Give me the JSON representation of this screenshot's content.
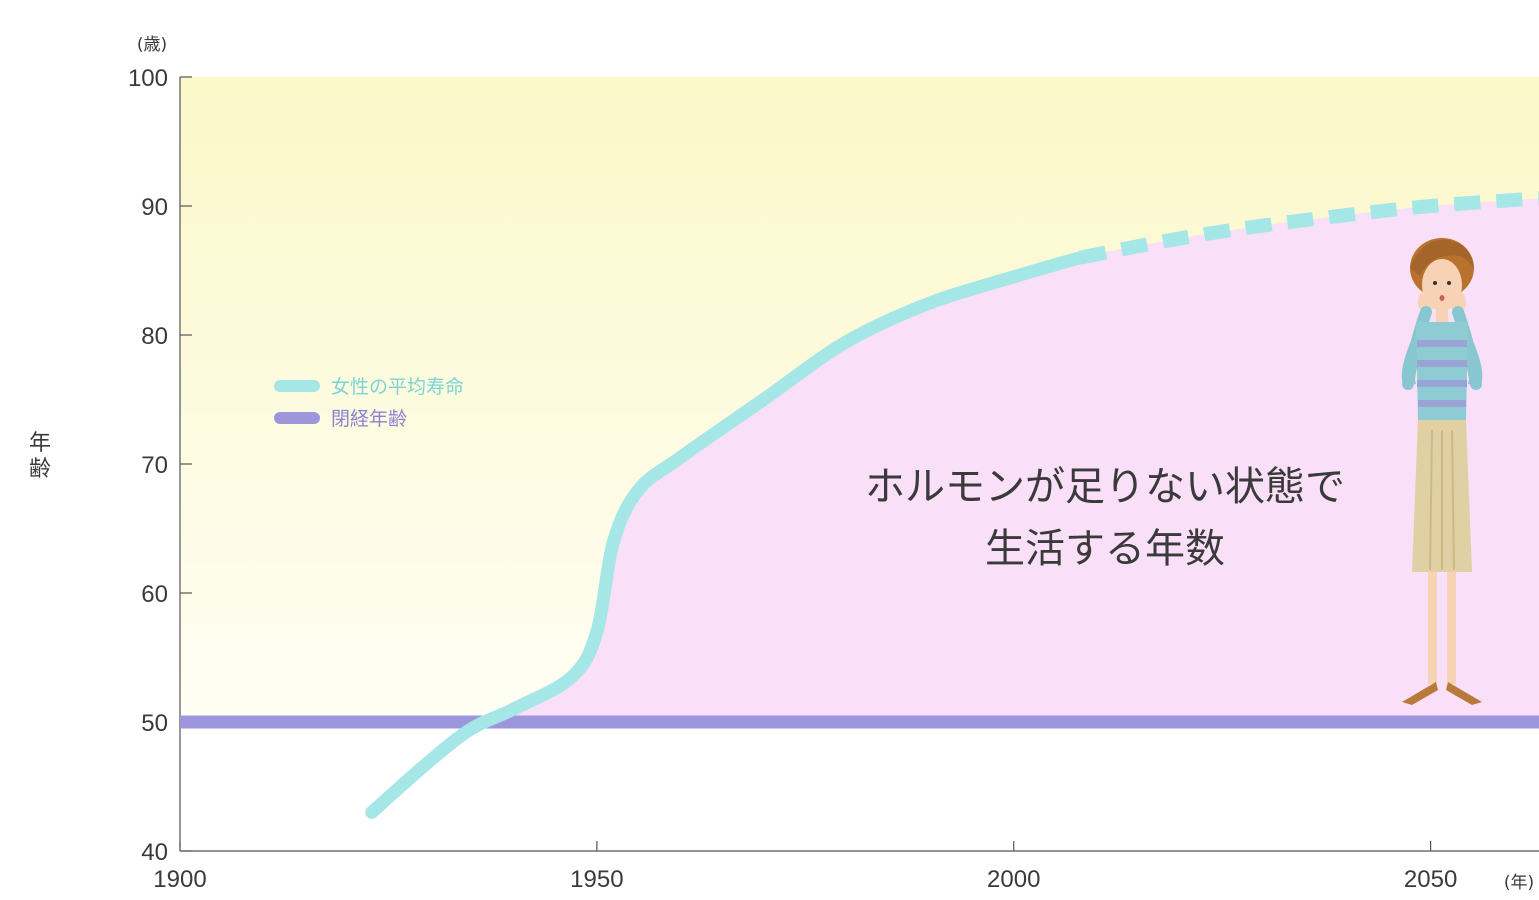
{
  "chart_data": {
    "type": "line",
    "title": "",
    "xlabel": "",
    "ylabel": "年齢",
    "x_unit": "(年)",
    "y_unit": "(歳)",
    "xlim": [
      1900,
      2063
    ],
    "ylim": [
      40,
      100
    ],
    "x_ticks": [
      1900,
      1950,
      2000,
      2050
    ],
    "y_ticks": [
      40,
      50,
      60,
      70,
      80,
      90,
      100
    ],
    "legend_position": "left",
    "annotation": [
      "ホルモンが足りない状態で",
      "生活する年数"
    ],
    "colors": {
      "life_expectancy": "#a5e6e6",
      "menopause": "#9d96dc",
      "gap_fill": "#f9dff7",
      "background_top": "#fbf8c9",
      "background_bottom": "#fffef4",
      "axis": "#555555"
    },
    "series": [
      {
        "name": "女性の平均寿命",
        "x": [
          1923,
          1930,
          1935,
          1940,
          1947,
          1950,
          1952,
          1955,
          1960,
          1970,
          1980,
          1990,
          2000,
          2008
        ],
        "y": [
          43,
          47,
          49.5,
          51,
          53.5,
          57,
          64,
          68,
          70.5,
          75,
          79.5,
          82.5,
          84.5,
          86
        ],
        "projected_x": [
          2008,
          2020,
          2030,
          2040,
          2050,
          2063
        ],
        "projected_y": [
          86,
          87.5,
          88.5,
          89.3,
          90,
          90.6
        ]
      },
      {
        "name": "閉経年齢",
        "x": [
          1900,
          2063
        ],
        "y": [
          50,
          50
        ]
      }
    ]
  },
  "figure": {
    "name": "woman-illustration"
  }
}
